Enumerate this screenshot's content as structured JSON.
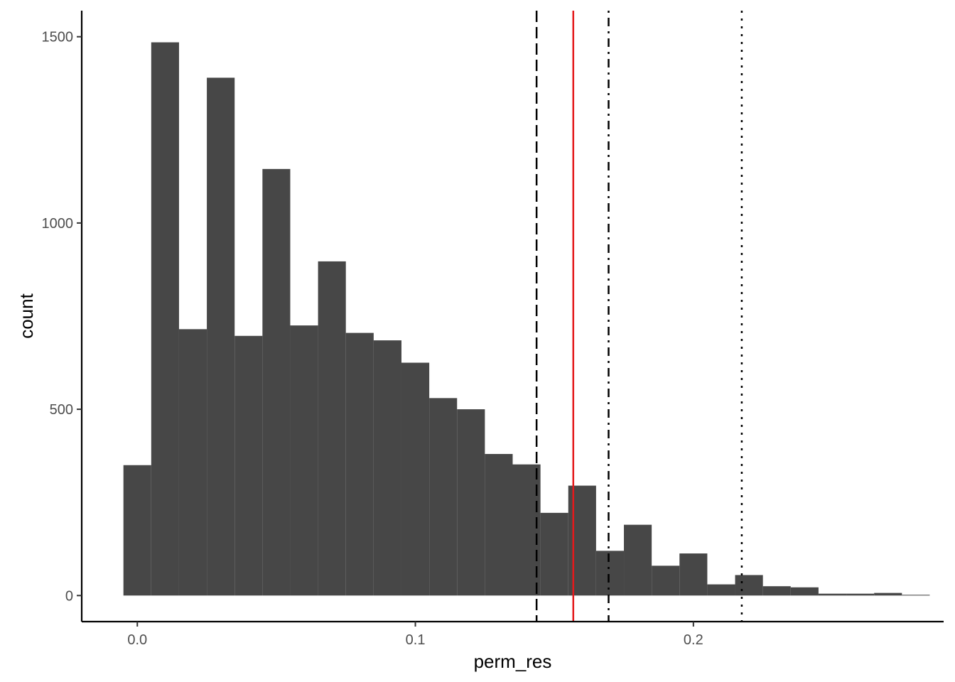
{
  "chart_data": {
    "type": "bar",
    "subtype": "histogram",
    "xlabel": "perm_res",
    "ylabel": "count",
    "xlim": [
      -0.02,
      0.29
    ],
    "ylim": [
      -70,
      1570
    ],
    "x_ticks": [
      {
        "value": 0.0,
        "label": "0.0"
      },
      {
        "value": 0.1,
        "label": "0.1"
      },
      {
        "value": 0.2,
        "label": "0.2"
      }
    ],
    "y_ticks": [
      {
        "value": 0,
        "label": "0"
      },
      {
        "value": 500,
        "label": "500"
      },
      {
        "value": 1000,
        "label": "1000"
      },
      {
        "value": 1500,
        "label": "1500"
      }
    ],
    "bin_width": 0.01,
    "bins": [
      {
        "x0": -0.005,
        "x1": 0.005,
        "count": 350
      },
      {
        "x0": 0.005,
        "x1": 0.015,
        "count": 1485
      },
      {
        "x0": 0.015,
        "x1": 0.025,
        "count": 715
      },
      {
        "x0": 0.025,
        "x1": 0.035,
        "count": 1390
      },
      {
        "x0": 0.035,
        "x1": 0.045,
        "count": 697
      },
      {
        "x0": 0.045,
        "x1": 0.055,
        "count": 1145
      },
      {
        "x0": 0.055,
        "x1": 0.065,
        "count": 725
      },
      {
        "x0": 0.065,
        "x1": 0.075,
        "count": 897
      },
      {
        "x0": 0.075,
        "x1": 0.085,
        "count": 705
      },
      {
        "x0": 0.085,
        "x1": 0.095,
        "count": 685
      },
      {
        "x0": 0.095,
        "x1": 0.105,
        "count": 625
      },
      {
        "x0": 0.105,
        "x1": 0.115,
        "count": 530
      },
      {
        "x0": 0.115,
        "x1": 0.125,
        "count": 500
      },
      {
        "x0": 0.125,
        "x1": 0.135,
        "count": 380
      },
      {
        "x0": 0.135,
        "x1": 0.145,
        "count": 352
      },
      {
        "x0": 0.145,
        "x1": 0.155,
        "count": 222
      },
      {
        "x0": 0.155,
        "x1": 0.165,
        "count": 295
      },
      {
        "x0": 0.165,
        "x1": 0.175,
        "count": 120
      },
      {
        "x0": 0.175,
        "x1": 0.185,
        "count": 190
      },
      {
        "x0": 0.185,
        "x1": 0.195,
        "count": 80
      },
      {
        "x0": 0.195,
        "x1": 0.205,
        "count": 113
      },
      {
        "x0": 0.205,
        "x1": 0.215,
        "count": 30
      },
      {
        "x0": 0.215,
        "x1": 0.225,
        "count": 55
      },
      {
        "x0": 0.225,
        "x1": 0.235,
        "count": 25
      },
      {
        "x0": 0.235,
        "x1": 0.245,
        "count": 22
      },
      {
        "x0": 0.245,
        "x1": 0.255,
        "count": 5
      },
      {
        "x0": 0.255,
        "x1": 0.265,
        "count": 5
      },
      {
        "x0": 0.265,
        "x1": 0.275,
        "count": 7
      },
      {
        "x0": 0.275,
        "x1": 0.285,
        "count": 2
      }
    ],
    "bar_color": "#474747",
    "reference_lines": [
      {
        "x": 0.1436,
        "color": "#000000",
        "linetype": "dashed"
      },
      {
        "x": 0.1568,
        "color": "#e41a1c",
        "linetype": "solid"
      },
      {
        "x": 0.1695,
        "color": "#000000",
        "linetype": "dotdash"
      },
      {
        "x": 0.2174,
        "color": "#000000",
        "linetype": "dotted"
      }
    ],
    "grid": false,
    "legend": "none"
  }
}
